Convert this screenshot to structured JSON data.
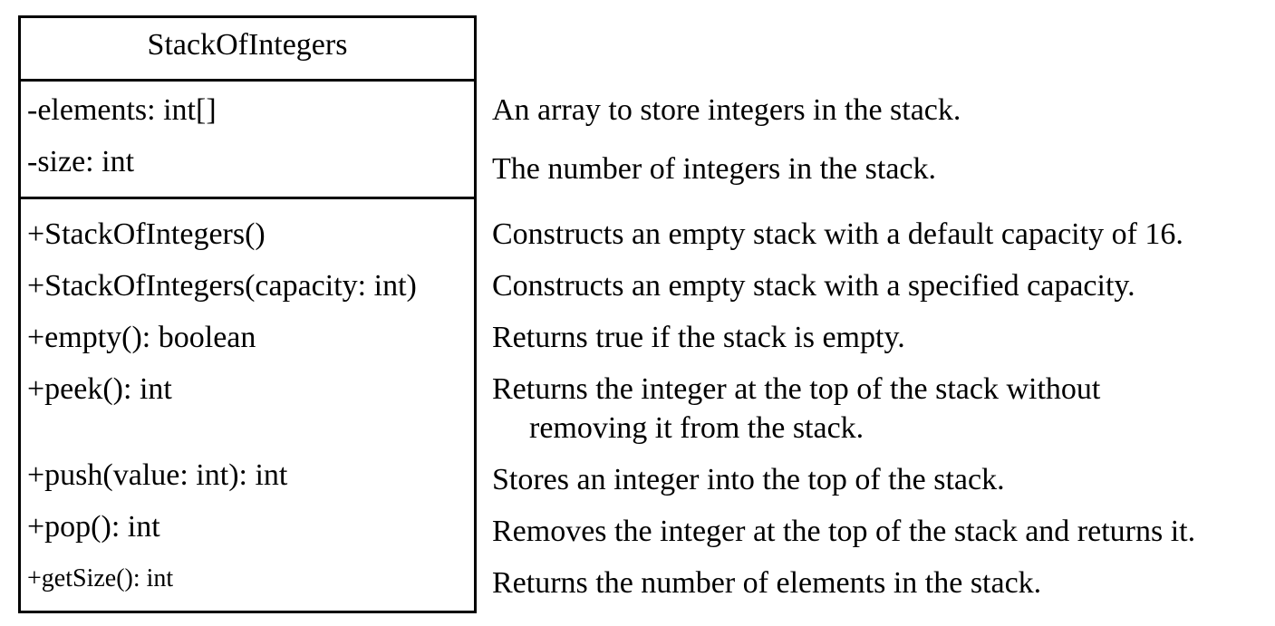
{
  "class_name": "StackOfIntegers",
  "attributes": [
    {
      "signature": "-elements: int[]",
      "description": "An array to store integers in the stack."
    },
    {
      "signature": "-size: int",
      "description": "The number of integers in the stack."
    }
  ],
  "methods": [
    {
      "signature": "+StackOfIntegers()",
      "description": "Constructs an empty stack with a default capacity of 16."
    },
    {
      "signature": "+StackOfIntegers(capacity: int)",
      "description": "Constructs an empty stack with a specified capacity."
    },
    {
      "signature": "+empty(): boolean",
      "description": "Returns true if the stack is empty."
    },
    {
      "signature": "+peek(): int",
      "description": "Returns the integer at the top of the stack without",
      "description_cont": "removing it from the stack."
    },
    {
      "signature": "+push(value: int): int",
      "description": "Stores an integer into the top of the stack."
    },
    {
      "signature": "+pop(): int",
      "description": "Removes the integer at the top of the stack and returns it."
    },
    {
      "signature": "+getSize(): int",
      "description": "Returns the number of elements in the stack."
    }
  ]
}
